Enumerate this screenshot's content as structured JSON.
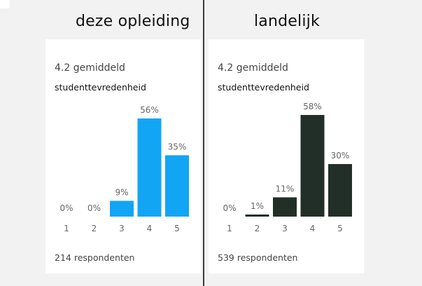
{
  "corner": "",
  "chart_data": [
    {
      "type": "bar",
      "title": "deze opleiding",
      "subtitle": "4.2 gemiddeld",
      "metric": "studenttevredenheid",
      "categories": [
        "1",
        "2",
        "3",
        "4",
        "5"
      ],
      "values": [
        0,
        0,
        9,
        56,
        35
      ],
      "value_labels": [
        "0%",
        "0%",
        "9%",
        "56%",
        "35%"
      ],
      "respondents": "214 respondenten",
      "color": "#12a5f4",
      "ylim": [
        0,
        60
      ],
      "grid": false,
      "legend": "none"
    },
    {
      "type": "bar",
      "title": "landelijk",
      "subtitle": "4.2 gemiddeld",
      "metric": "studenttevredenheid",
      "categories": [
        "1",
        "2",
        "3",
        "4",
        "5"
      ],
      "values": [
        0,
        1,
        11,
        58,
        30
      ],
      "value_labels": [
        "0%",
        "1%",
        "11%",
        "58%",
        "30%"
      ],
      "respondents": "539 respondenten",
      "color": "#222f28",
      "ylim": [
        0,
        60
      ],
      "grid": false,
      "legend": "none"
    }
  ]
}
